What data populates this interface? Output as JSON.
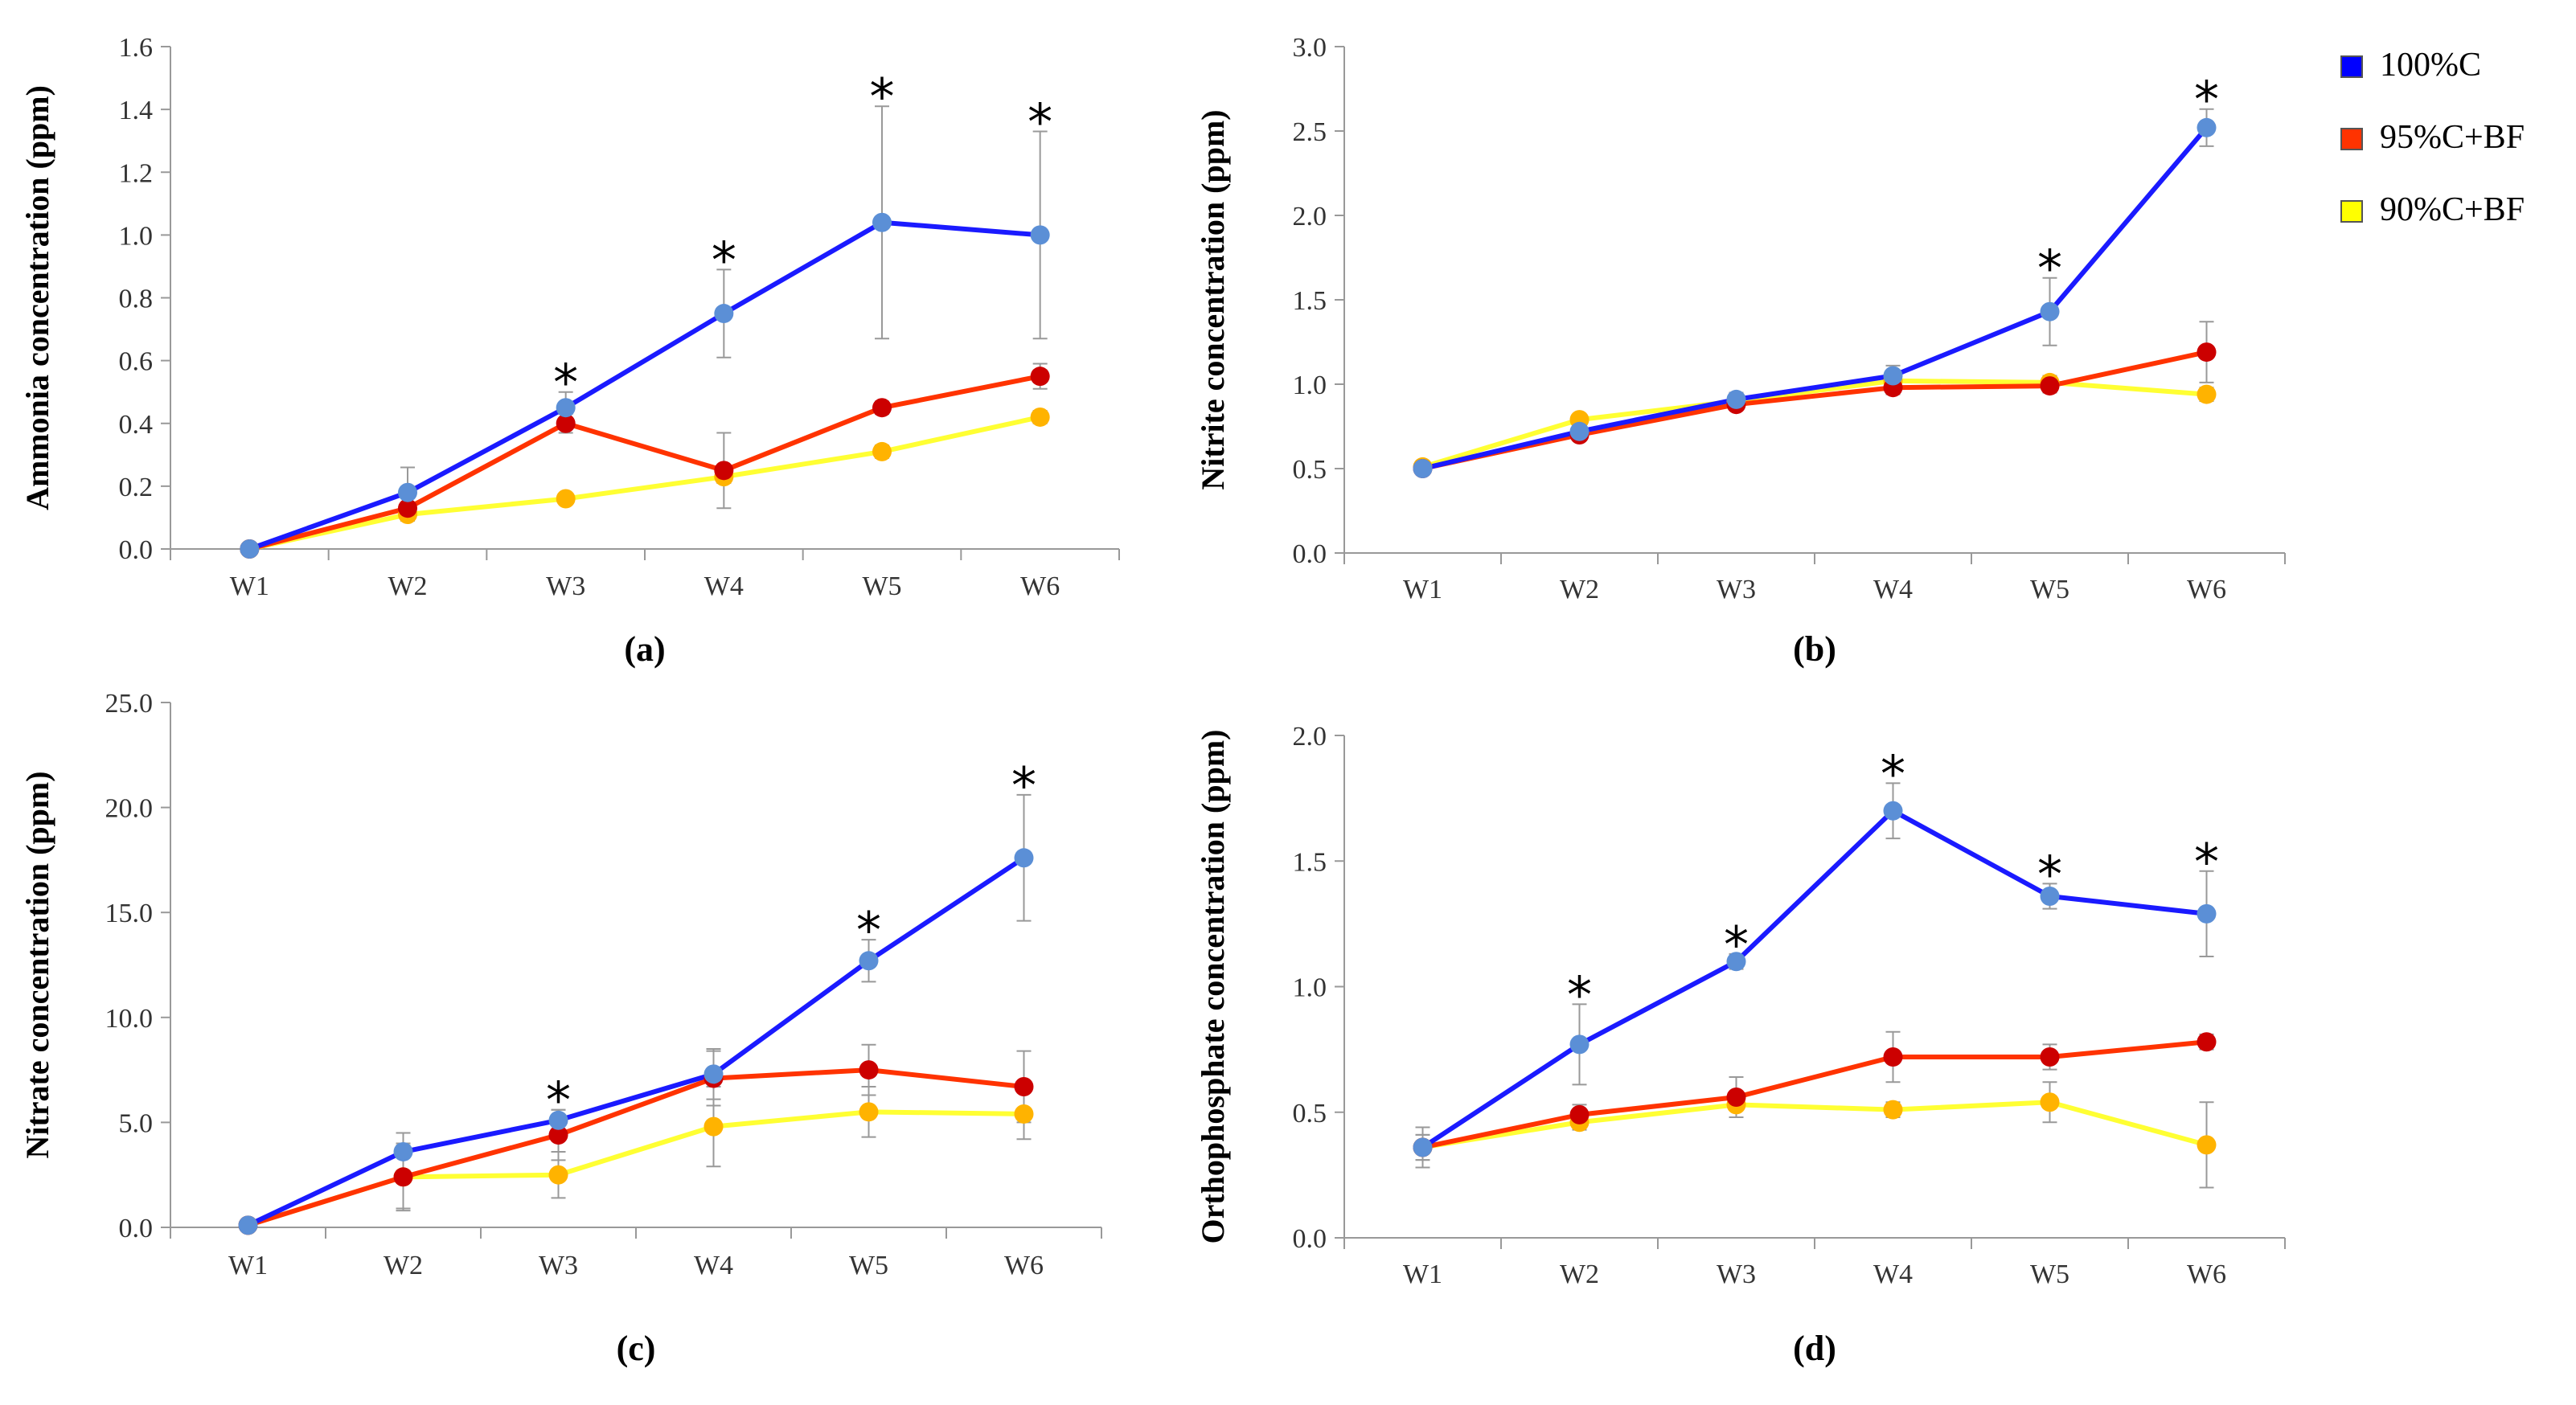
{
  "chart_data": [
    {
      "type": "line",
      "panel_label": "(a)",
      "ylabel": "Ammonia concentration (ppm)",
      "categories": [
        "W1",
        "W2",
        "W3",
        "W4",
        "W5",
        "W6"
      ],
      "ylim": [
        0,
        1.6
      ],
      "yticks": [
        0,
        0.2,
        0.4,
        0.6,
        0.8,
        1.0,
        1.2,
        1.4,
        1.6
      ],
      "ytick_labels": [
        "0.0",
        "0.2",
        "0.4",
        "0.6",
        "0.8",
        "1.0",
        "1.2",
        "1.4",
        "1.6"
      ],
      "series": [
        {
          "name": "100%C",
          "values": [
            0.0,
            0.18,
            0.45,
            0.75,
            1.04,
            1.0
          ],
          "errors": [
            0,
            0.08,
            0.05,
            0.14,
            0.37,
            0.33
          ]
        },
        {
          "name": "95%C+BF",
          "values": [
            0.0,
            0.13,
            0.4,
            0.25,
            0.45,
            0.55
          ],
          "errors": [
            0,
            0.04,
            0.03,
            0.12,
            0.02,
            0.04
          ]
        },
        {
          "name": "90%C+BF",
          "values": [
            0.0,
            0.11,
            0.16,
            0.23,
            0.31,
            0.42
          ],
          "errors": [
            0,
            0.02,
            0.01,
            0.02,
            0.02,
            0.02
          ]
        }
      ],
      "significance": [
        "",
        "",
        "*",
        "*",
        "*",
        "*"
      ]
    },
    {
      "type": "line",
      "panel_label": "(b)",
      "ylabel": "Nitrite concentration (ppm)",
      "categories": [
        "W1",
        "W2",
        "W3",
        "W4",
        "W5",
        "W6"
      ],
      "ylim": [
        0,
        3.0
      ],
      "yticks": [
        0,
        0.5,
        1.0,
        1.5,
        2.0,
        2.5,
        3.0
      ],
      "ytick_labels": [
        "0.0",
        "0.5",
        "1.0",
        "1.5",
        "2.0",
        "2.5",
        "3.0"
      ],
      "series": [
        {
          "name": "100%C",
          "values": [
            0.5,
            0.72,
            0.91,
            1.05,
            1.43,
            2.52
          ],
          "errors": [
            0.02,
            0.03,
            0.04,
            0.06,
            0.2,
            0.11
          ]
        },
        {
          "name": "95%C+BF",
          "values": [
            0.5,
            0.7,
            0.88,
            0.98,
            0.99,
            1.19
          ],
          "errors": [
            0.02,
            0.03,
            0.03,
            0.04,
            0.04,
            0.18
          ]
        },
        {
          "name": "90%C+BF",
          "values": [
            0.51,
            0.79,
            0.9,
            1.02,
            1.01,
            0.94
          ],
          "errors": [
            0.02,
            0.03,
            0.03,
            0.05,
            0.04,
            0.04
          ]
        }
      ],
      "significance": [
        "",
        "",
        "",
        "",
        "*",
        "*"
      ]
    },
    {
      "type": "line",
      "panel_label": "(c)",
      "ylabel": "Nitrate concentration (ppm)",
      "categories": [
        "W1",
        "W2",
        "W3",
        "W4",
        "W5",
        "W6"
      ],
      "ylim": [
        0,
        25.0
      ],
      "yticks": [
        0,
        5,
        10,
        15,
        20,
        25
      ],
      "ytick_labels": [
        "0.0",
        "5.0",
        "10.0",
        "15.0",
        "20.0",
        "25.0"
      ],
      "series": [
        {
          "name": "100%C",
          "values": [
            0.1,
            3.6,
            5.1,
            7.3,
            12.7,
            17.6
          ],
          "errors": [
            0.1,
            0.9,
            0.5,
            1.2,
            1.0,
            3.0
          ]
        },
        {
          "name": "95%C+BF",
          "values": [
            0.1,
            2.4,
            4.4,
            7.1,
            7.5,
            6.7
          ],
          "errors": [
            0.1,
            1.5,
            1.2,
            1.3,
            1.2,
            1.7
          ]
        },
        {
          "name": "90%C+BF",
          "values": [
            0.1,
            2.4,
            2.5,
            4.8,
            5.5,
            5.4
          ],
          "errors": [
            0.1,
            1.6,
            1.1,
            1.9,
            1.2,
            1.2
          ]
        }
      ],
      "significance": [
        "",
        "",
        "*",
        "",
        "*",
        "*"
      ]
    },
    {
      "type": "line",
      "panel_label": "(d)",
      "ylabel": "Orthophosphate concentration (ppm)",
      "categories": [
        "W1",
        "W2",
        "W3",
        "W4",
        "W5",
        "W6"
      ],
      "ylim": [
        0,
        2.0
      ],
      "yticks": [
        0,
        0.5,
        1.0,
        1.5,
        2.0
      ],
      "ytick_labels": [
        "0.0",
        "0.5",
        "1.0",
        "1.5",
        "2.0"
      ],
      "series": [
        {
          "name": "100%C",
          "values": [
            0.36,
            0.77,
            1.1,
            1.7,
            1.36,
            1.29
          ],
          "errors": [
            0.08,
            0.16,
            0.03,
            0.11,
            0.05,
            0.17
          ]
        },
        {
          "name": "95%C+BF",
          "values": [
            0.36,
            0.49,
            0.56,
            0.72,
            0.72,
            0.78
          ],
          "errors": [
            0.05,
            0.04,
            0.08,
            0.1,
            0.05,
            0.03
          ]
        },
        {
          "name": "90%C+BF",
          "values": [
            0.36,
            0.46,
            0.53,
            0.51,
            0.54,
            0.37
          ],
          "errors": [
            0.05,
            0.03,
            0.05,
            0.03,
            0.08,
            0.17
          ]
        }
      ],
      "significance": [
        "",
        "*",
        "*",
        "*",
        "*",
        "*"
      ]
    }
  ],
  "legend": {
    "placement": "top-right",
    "items": [
      {
        "label": "100%C",
        "color": "#0000ff"
      },
      {
        "label": "95%C+BF",
        "color": "#ff3300"
      },
      {
        "label": "90%C+BF",
        "color": "#ffff00"
      }
    ]
  },
  "colors": {
    "series_lines": [
      "#1a1aff",
      "#ff3300",
      "#ffff33"
    ],
    "series_markers": [
      "#5b8fd6",
      "#cc0000",
      "#ffb300"
    ],
    "axis": "#999999",
    "error_bar": "#999999"
  }
}
